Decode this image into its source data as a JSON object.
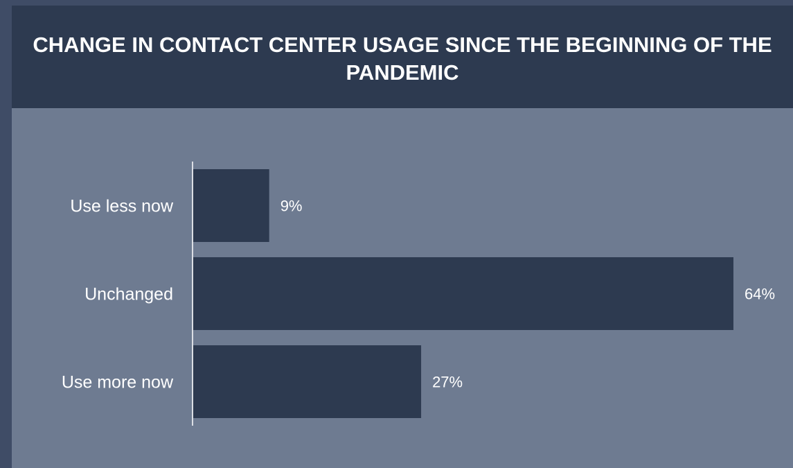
{
  "chart_data": {
    "type": "bar",
    "orientation": "horizontal",
    "title": "CHANGE IN CONTACT CENTER USAGE SINCE THE BEGINNING OF THE PANDEMIC",
    "categories": [
      "Use less now",
      "Unchanged",
      "Use more now"
    ],
    "values": [
      9,
      64,
      27
    ],
    "value_labels": [
      "9%",
      "64%",
      "27%"
    ],
    "xlim": [
      0,
      64
    ],
    "grid": false,
    "legend": "none",
    "colors": {
      "bar": "#2d3a50",
      "plot_background": "#6e7b91",
      "header_background": "#2d3a50",
      "outer_background": "#3f4c66",
      "axis": "#ffffff",
      "text": "#ffffff"
    }
  }
}
